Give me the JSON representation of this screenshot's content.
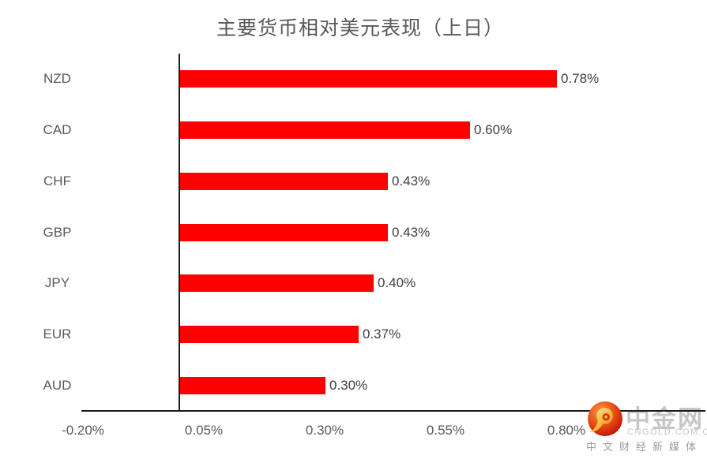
{
  "chart_data": {
    "type": "bar",
    "orientation": "horizontal",
    "title": "主要货币相对美元表现（上日）",
    "categories": [
      "NZD",
      "CAD",
      "CHF",
      "GBP",
      "JPY",
      "EUR",
      "AUD"
    ],
    "values": [
      0.78,
      0.6,
      0.43,
      0.43,
      0.4,
      0.37,
      0.3
    ],
    "data_labels": [
      "0.78%",
      "0.60%",
      "0.43%",
      "0.43%",
      "0.40%",
      "0.37%",
      "0.30%"
    ],
    "x_ticks": [
      {
        "label": "-0.20%",
        "value": -0.2
      },
      {
        "label": "0.05%",
        "value": 0.05
      },
      {
        "label": "0.30%",
        "value": 0.3
      },
      {
        "label": "0.55%",
        "value": 0.55
      },
      {
        "label": "0.80%",
        "value": 0.8
      }
    ],
    "xlim": [
      -0.2,
      1.09
    ],
    "unit": "percent",
    "grid": false,
    "legend": false,
    "bar_color": "#ff0000",
    "axis_color": "#1a1a1a",
    "title_color": "#595959",
    "category_label_color": "#595959",
    "data_label_color": "#404040"
  },
  "watermark": {
    "brand": "中金网",
    "domain": "CNGOLD.COM.CN",
    "tagline": "中文财经新媒体"
  }
}
